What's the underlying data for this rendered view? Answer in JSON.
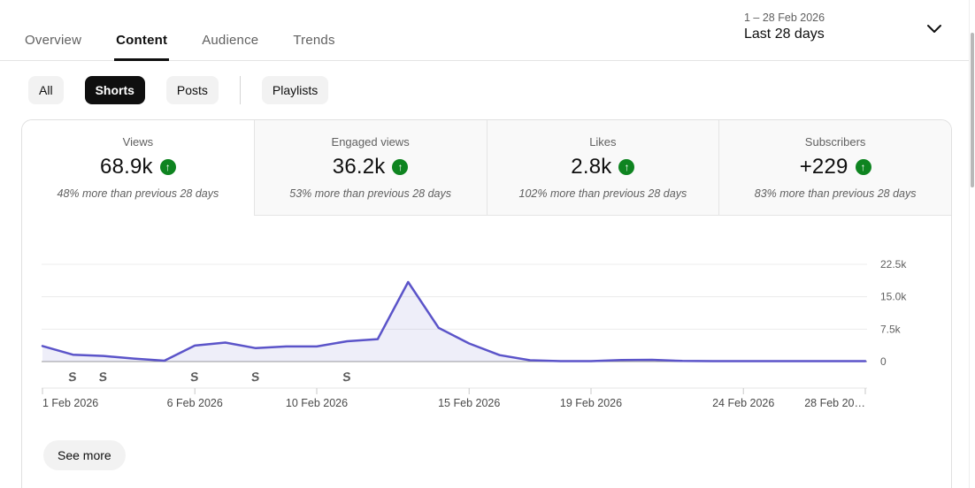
{
  "header": {
    "tabs": [
      {
        "label": "Overview",
        "active": false
      },
      {
        "label": "Content",
        "active": true
      },
      {
        "label": "Audience",
        "active": false
      },
      {
        "label": "Trends",
        "active": false
      }
    ],
    "date_picker": {
      "range_text": "1 – 28 Feb 2026",
      "preset": "Last 28 days"
    }
  },
  "filters": {
    "chips": [
      {
        "label": "All",
        "selected": false
      },
      {
        "label": "Shorts",
        "selected": true
      },
      {
        "label": "Posts",
        "selected": false
      }
    ],
    "playlists_chip": {
      "label": "Playlists",
      "selected": false
    }
  },
  "metrics": {
    "cards": [
      {
        "label": "Views",
        "value": "68.9k",
        "trend": "up",
        "note": "48% more than previous 28 days",
        "selected": true
      },
      {
        "label": "Engaged views",
        "value": "36.2k",
        "trend": "up",
        "note": "53% more than previous 28 days",
        "selected": false
      },
      {
        "label": "Likes",
        "value": "2.8k",
        "trend": "up",
        "note": "102% more than previous 28 days",
        "selected": false
      },
      {
        "label": "Subscribers",
        "value": "+229",
        "trend": "up",
        "note": "83% more than previous 28 days",
        "selected": false
      }
    ]
  },
  "chart_data": {
    "type": "area",
    "series_name": "Views",
    "x_unit": "day",
    "x_start_label": "1 Feb 2026",
    "x_end_label": "28 Feb 2026",
    "values": [
      3600,
      1600,
      1300,
      700,
      200,
      3700,
      4400,
      3100,
      3500,
      3500,
      4700,
      5200,
      18400,
      7800,
      4200,
      1500,
      300,
      100,
      100,
      350,
      400,
      150,
      100,
      100,
      100,
      100,
      100,
      100
    ],
    "x_tick_labels": [
      "1 Feb 2026",
      "6 Feb 2026",
      "10 Feb 2026",
      "15 Feb 2026",
      "19 Feb 2026",
      "24 Feb 2026",
      "28 Feb 20…"
    ],
    "x_tick_day_indexes": [
      0,
      5,
      9,
      14,
      18,
      23,
      27
    ],
    "y_tick_labels": [
      "22.5k",
      "15.0k",
      "7.5k",
      "0"
    ],
    "y_tick_values": [
      22500,
      15000,
      7500,
      0
    ],
    "ylim": [
      0,
      22500
    ],
    "grid": true,
    "legend": "none",
    "shorts_marker_day_indexes": [
      1,
      2,
      5,
      7,
      10
    ],
    "line_color": "#5b54c9",
    "fill_color": "#5b54c9",
    "fill_opacity": 0.1
  },
  "card": {
    "see_more_label": "See more"
  },
  "colors": {
    "text_primary": "#0f0f0f",
    "text_secondary": "#606060",
    "positive_green": "#0e8420",
    "chip_selected_bg": "#0f0f0f",
    "inactive_card_bg": "#f9f9f9",
    "border": "#e0e0e0",
    "accent_line": "#5b54c9"
  }
}
